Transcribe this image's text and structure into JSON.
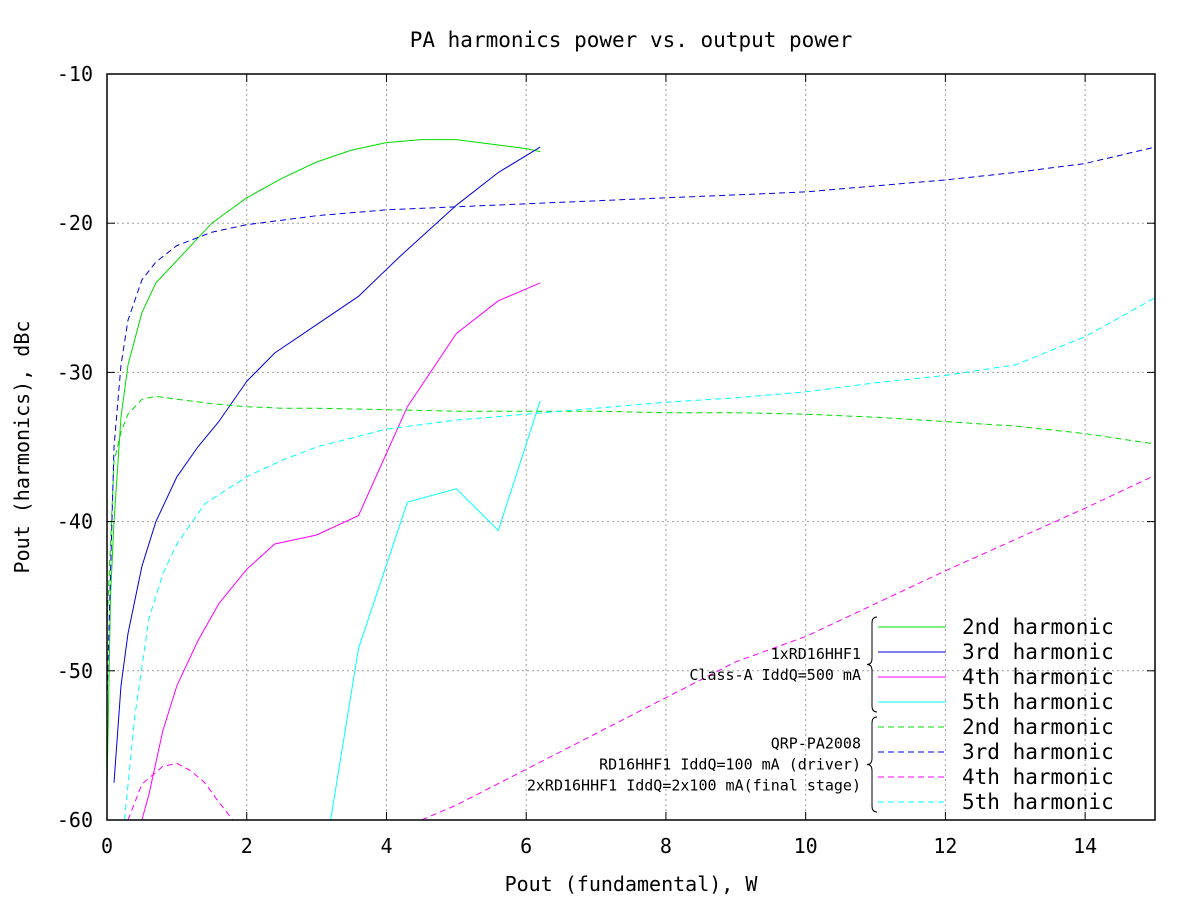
{
  "chart_data": {
    "type": "line",
    "title": "PA harmonics power vs. output power",
    "xlabel": "Pout (fundamental), W",
    "ylabel": "Pout (harmonics), dBc",
    "xlim": [
      0,
      15
    ],
    "ylim": [
      -60,
      -10
    ],
    "xticks": [
      0,
      2,
      4,
      6,
      8,
      10,
      12,
      14
    ],
    "yticks": [
      -10,
      -20,
      -30,
      -40,
      -50,
      -60
    ],
    "grid": true,
    "legend_position": "bottom-right",
    "groups": [
      {
        "label_lines": [
          "1xRD16HHF1",
          "Class-A IddQ=500 mA"
        ],
        "line_style": "solid",
        "series": [
          {
            "name": "2nd harmonic",
            "color": "#00dd00",
            "points": [
              [
                0.0,
                -58
              ],
              [
                0.05,
                -45
              ],
              [
                0.1,
                -40
              ],
              [
                0.2,
                -33
              ],
              [
                0.3,
                -29.5
              ],
              [
                0.5,
                -26
              ],
              [
                0.7,
                -24
              ],
              [
                1.0,
                -22.5
              ],
              [
                1.5,
                -20
              ],
              [
                2.0,
                -18.3
              ],
              [
                2.5,
                -17
              ],
              [
                3.0,
                -15.9
              ],
              [
                3.5,
                -15.1
              ],
              [
                4.0,
                -14.6
              ],
              [
                4.5,
                -14.4
              ],
              [
                5.0,
                -14.4
              ],
              [
                5.5,
                -14.7
              ],
              [
                6.0,
                -15.0
              ],
              [
                6.2,
                -15.2
              ]
            ]
          },
          {
            "name": "3rd harmonic",
            "color": "#0000dd",
            "points": [
              [
                0.1,
                -57.5
              ],
              [
                0.2,
                -51
              ],
              [
                0.3,
                -47.5
              ],
              [
                0.5,
                -43
              ],
              [
                0.7,
                -40
              ],
              [
                1.0,
                -37
              ],
              [
                1.3,
                -35
              ],
              [
                1.6,
                -33.3
              ],
              [
                2.0,
                -30.6
              ],
              [
                2.4,
                -28.7
              ],
              [
                3.0,
                -26.8
              ],
              [
                3.6,
                -24.9
              ],
              [
                4.2,
                -22.2
              ],
              [
                5.0,
                -18.8
              ],
              [
                5.6,
                -16.6
              ],
              [
                6.2,
                -14.9
              ]
            ]
          },
          {
            "name": "4th harmonic",
            "color": "#ff00ff",
            "points": [
              [
                0.5,
                -60
              ],
              [
                0.6,
                -58.3
              ],
              [
                0.8,
                -54
              ],
              [
                1.0,
                -51
              ],
              [
                1.3,
                -48
              ],
              [
                1.6,
                -45.5
              ],
              [
                2.0,
                -43.2
              ],
              [
                2.4,
                -41.5
              ],
              [
                3.0,
                -40.9
              ],
              [
                3.6,
                -39.6
              ],
              [
                4.3,
                -32.3
              ],
              [
                5.0,
                -27.4
              ],
              [
                5.6,
                -25.2
              ],
              [
                6.2,
                -24.0
              ]
            ]
          },
          {
            "name": "5th harmonic",
            "color": "#00ffff",
            "points": [
              [
                3.2,
                -60
              ],
              [
                3.6,
                -48.5
              ],
              [
                4.3,
                -38.7
              ],
              [
                5.0,
                -37.8
              ],
              [
                5.6,
                -40.6
              ],
              [
                6.2,
                -31.9
              ]
            ]
          }
        ]
      },
      {
        "label_lines": [
          "QRP-PA2008",
          "RD16HHF1 IddQ=100 mA (driver)",
          "2xRD16HHF1 IddQ=2x100 mA(final stage)"
        ],
        "line_style": "dashed",
        "series": [
          {
            "name": "2nd harmonic",
            "color": "#00dd00",
            "points": [
              [
                0.0,
                -47
              ],
              [
                0.1,
                -36
              ],
              [
                0.2,
                -34
              ],
              [
                0.3,
                -32.8
              ],
              [
                0.5,
                -31.8
              ],
              [
                0.7,
                -31.6
              ],
              [
                1.0,
                -31.8
              ],
              [
                1.5,
                -32.1
              ],
              [
                2.0,
                -32.3
              ],
              [
                2.5,
                -32.4
              ],
              [
                3.0,
                -32.4
              ],
              [
                4.0,
                -32.5
              ],
              [
                5.0,
                -32.6
              ],
              [
                6.0,
                -32.6
              ],
              [
                7.0,
                -32.6
              ],
              [
                8.0,
                -32.7
              ],
              [
                9.0,
                -32.7
              ],
              [
                10.0,
                -32.8
              ],
              [
                11.0,
                -33.0
              ],
              [
                12.0,
                -33.3
              ],
              [
                13.0,
                -33.6
              ],
              [
                14.0,
                -34.1
              ],
              [
                15.0,
                -34.8
              ]
            ]
          },
          {
            "name": "3rd harmonic",
            "color": "#0000dd",
            "points": [
              [
                0.0,
                -52
              ],
              [
                0.1,
                -35
              ],
              [
                0.2,
                -29.5
              ],
              [
                0.3,
                -26.5
              ],
              [
                0.5,
                -23.8
              ],
              [
                0.7,
                -22.6
              ],
              [
                1.0,
                -21.5
              ],
              [
                1.5,
                -20.6
              ],
              [
                2.0,
                -20.1
              ],
              [
                2.5,
                -19.8
              ],
              [
                3.0,
                -19.5
              ],
              [
                4.0,
                -19.1
              ],
              [
                5.0,
                -18.9
              ],
              [
                6.0,
                -18.7
              ],
              [
                7.0,
                -18.5
              ],
              [
                8.0,
                -18.3
              ],
              [
                9.0,
                -18.1
              ],
              [
                10.0,
                -17.9
              ],
              [
                11.0,
                -17.5
              ],
              [
                12.0,
                -17.1
              ],
              [
                13.0,
                -16.6
              ],
              [
                14.0,
                -16.0
              ],
              [
                15.0,
                -14.9
              ]
            ]
          },
          {
            "name": "4th harmonic",
            "color": "#ff00ff",
            "points": [
              [
                0.3,
                -60
              ],
              [
                0.5,
                -57.6
              ],
              [
                0.8,
                -56.4
              ],
              [
                1.0,
                -56.2
              ],
              [
                1.2,
                -56.7
              ],
              [
                1.4,
                -57.5
              ],
              [
                1.6,
                -58.8
              ],
              [
                1.8,
                -60
              ],
              [
                4.5,
                -60
              ],
              [
                5.0,
                -59
              ],
              [
                6.0,
                -56.6
              ],
              [
                7.0,
                -54.2
              ],
              [
                8.0,
                -51.8
              ],
              [
                9.0,
                -49.4
              ],
              [
                10.0,
                -47.7
              ],
              [
                11.0,
                -45.5
              ],
              [
                12.0,
                -43.3
              ],
              [
                13.0,
                -41.2
              ],
              [
                14.0,
                -39.1
              ],
              [
                15.0,
                -36.9
              ]
            ]
          },
          {
            "name": "5th harmonic",
            "color": "#00ffff",
            "points": [
              [
                0.25,
                -60
              ],
              [
                0.4,
                -53
              ],
              [
                0.6,
                -46.5
              ],
              [
                0.8,
                -43.5
              ],
              [
                1.0,
                -41.5
              ],
              [
                1.4,
                -38.8
              ],
              [
                2.0,
                -37
              ],
              [
                2.5,
                -35.9
              ],
              [
                3.0,
                -35
              ],
              [
                4.0,
                -33.8
              ],
              [
                5.0,
                -33.2
              ],
              [
                6.0,
                -32.8
              ],
              [
                7.0,
                -32.4
              ],
              [
                8.0,
                -32
              ],
              [
                9.0,
                -31.7
              ],
              [
                10.0,
                -31.3
              ],
              [
                11.0,
                -30.7
              ],
              [
                12.0,
                -30.2
              ],
              [
                13.0,
                -29.5
              ],
              [
                14.0,
                -27.6
              ],
              [
                15.0,
                -25.0
              ]
            ]
          }
        ]
      }
    ]
  }
}
